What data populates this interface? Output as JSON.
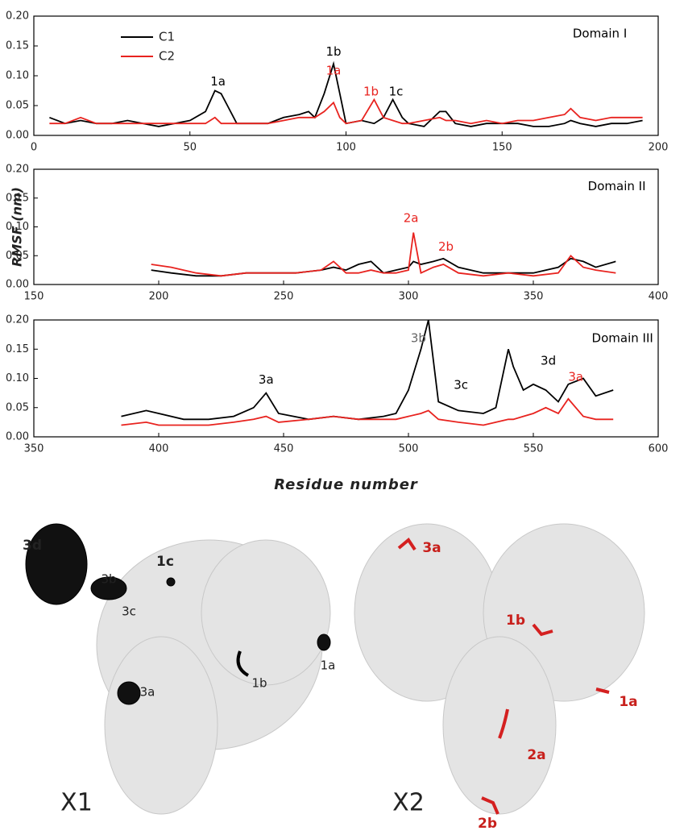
{
  "chart_data": [
    {
      "type": "line",
      "xlim": [
        0,
        200
      ],
      "xticks": [
        0,
        50,
        100,
        150,
        200
      ],
      "ylim": [
        0,
        0.2
      ],
      "yticks": [
        {
          "value": 0,
          "label": "0.00"
        },
        {
          "value": 0.05,
          "label": "0.05"
        },
        {
          "value": 0.1,
          "label": "0.10"
        },
        {
          "value": 0.15,
          "label": "0.15"
        },
        {
          "value": 0.2,
          "label": "0.20"
        }
      ],
      "legend": "upper left",
      "x": [
        5,
        10,
        15,
        20,
        25,
        30,
        35,
        40,
        45,
        50,
        55,
        58,
        60,
        62,
        65,
        70,
        75,
        80,
        85,
        88,
        90,
        93,
        96,
        98,
        100,
        105,
        109,
        112,
        115,
        118,
        120,
        125,
        130,
        132,
        135,
        140,
        145,
        150,
        155,
        160,
        165,
        170,
        172,
        175,
        180,
        185,
        190,
        195
      ],
      "series": [
        {
          "name": "C1",
          "color": "#000000",
          "values": [
            0.03,
            0.02,
            0.025,
            0.02,
            0.02,
            0.025,
            0.02,
            0.015,
            0.02,
            0.025,
            0.04,
            0.075,
            0.07,
            0.05,
            0.02,
            0.02,
            0.02,
            0.03,
            0.035,
            0.04,
            0.03,
            0.07,
            0.12,
            0.07,
            0.02,
            0.025,
            0.02,
            0.03,
            0.06,
            0.03,
            0.02,
            0.015,
            0.04,
            0.04,
            0.02,
            0.015,
            0.02,
            0.02,
            0.02,
            0.015,
            0.015,
            0.02,
            0.025,
            0.02,
            0.015,
            0.02,
            0.02,
            0.025
          ]
        },
        {
          "name": "C2",
          "color": "#e8231f",
          "values": [
            0.02,
            0.02,
            0.03,
            0.02,
            0.02,
            0.02,
            0.02,
            0.02,
            0.02,
            0.02,
            0.02,
            0.03,
            0.02,
            0.02,
            0.02,
            0.02,
            0.02,
            0.025,
            0.03,
            0.03,
            0.03,
            0.04,
            0.055,
            0.03,
            0.02,
            0.025,
            0.06,
            0.03,
            0.025,
            0.02,
            0.02,
            0.025,
            0.03,
            0.025,
            0.025,
            0.02,
            0.025,
            0.02,
            0.025,
            0.025,
            0.03,
            0.035,
            0.045,
            0.03,
            0.025,
            0.03,
            0.03,
            0.03
          ]
        }
      ],
      "annotations": [
        {
          "text": "Domain I",
          "color": "#000000"
        },
        {
          "text": "1a",
          "color": "#000000"
        },
        {
          "text": "1b",
          "color": "#000000"
        },
        {
          "text": "1a",
          "color": "#e8231f"
        },
        {
          "text": "1b",
          "color": "#e8231f"
        },
        {
          "text": "1c",
          "color": "#000000"
        }
      ]
    },
    {
      "type": "line",
      "xlim": [
        150,
        400
      ],
      "xticks": [
        150,
        200,
        250,
        300,
        350,
        400
      ],
      "ylim": [
        0,
        0.2
      ],
      "yticks": [
        {
          "value": 0,
          "label": "0.00"
        },
        {
          "value": 0.05,
          "label": "0.05"
        },
        {
          "value": 0.1,
          "label": "0.10"
        },
        {
          "value": 0.15,
          "label": "0.15"
        },
        {
          "value": 0.2,
          "label": "0.20"
        }
      ],
      "ylabel": "RMSF (nm)",
      "x": [
        197,
        205,
        215,
        225,
        235,
        245,
        255,
        265,
        270,
        275,
        280,
        285,
        290,
        295,
        300,
        302,
        305,
        310,
        314,
        320,
        330,
        340,
        350,
        360,
        365,
        370,
        375,
        383
      ],
      "series": [
        {
          "color": "#000000",
          "values": [
            0.025,
            0.02,
            0.015,
            0.015,
            0.02,
            0.02,
            0.02,
            0.025,
            0.03,
            0.025,
            0.035,
            0.04,
            0.02,
            0.025,
            0.03,
            0.04,
            0.035,
            0.04,
            0.045,
            0.03,
            0.02,
            0.02,
            0.02,
            0.03,
            0.045,
            0.04,
            0.03,
            0.04
          ]
        },
        {
          "color": "#e8231f",
          "values": [
            0.035,
            0.03,
            0.02,
            0.015,
            0.02,
            0.02,
            0.02,
            0.025,
            0.04,
            0.02,
            0.02,
            0.025,
            0.02,
            0.02,
            0.025,
            0.09,
            0.02,
            0.03,
            0.035,
            0.02,
            0.015,
            0.02,
            0.015,
            0.02,
            0.05,
            0.03,
            0.025,
            0.02
          ]
        }
      ],
      "annotations": [
        {
          "text": "Domain II",
          "color": "#000000"
        },
        {
          "text": "2a",
          "color": "#e8231f"
        },
        {
          "text": "2b",
          "color": "#e8231f"
        }
      ]
    },
    {
      "type": "line",
      "xlim": [
        350,
        600
      ],
      "xticks": [
        350,
        400,
        450,
        500,
        550,
        600
      ],
      "ylim": [
        0,
        0.2
      ],
      "yticks": [
        {
          "value": 0,
          "label": "0.00"
        },
        {
          "value": 0.05,
          "label": "0.05"
        },
        {
          "value": 0.1,
          "label": "0.10"
        },
        {
          "value": 0.15,
          "label": "0.15"
        },
        {
          "value": 0.2,
          "label": "0.20"
        }
      ],
      "xlabel": "Residue number",
      "x": [
        385,
        395,
        400,
        410,
        420,
        430,
        438,
        443,
        448,
        460,
        470,
        480,
        490,
        495,
        500,
        505,
        508,
        512,
        520,
        530,
        535,
        540,
        542,
        546,
        550,
        555,
        560,
        564,
        570,
        575,
        582
      ],
      "series": [
        {
          "color": "#000000",
          "values": [
            0.035,
            0.045,
            0.04,
            0.03,
            0.03,
            0.035,
            0.05,
            0.075,
            0.04,
            0.03,
            0.035,
            0.03,
            0.035,
            0.04,
            0.08,
            0.15,
            0.2,
            0.06,
            0.045,
            0.04,
            0.05,
            0.15,
            0.12,
            0.08,
            0.09,
            0.08,
            0.06,
            0.09,
            0.1,
            0.07,
            0.08
          ]
        },
        {
          "color": "#e8231f",
          "values": [
            0.02,
            0.025,
            0.02,
            0.02,
            0.02,
            0.025,
            0.03,
            0.035,
            0.025,
            0.03,
            0.035,
            0.03,
            0.03,
            0.03,
            0.035,
            0.04,
            0.045,
            0.03,
            0.025,
            0.02,
            0.025,
            0.03,
            0.03,
            0.035,
            0.04,
            0.05,
            0.04,
            0.065,
            0.035,
            0.03,
            0.03
          ]
        }
      ],
      "annotations": [
        {
          "text": "Domain III",
          "color": "#000000"
        },
        {
          "text": "3a",
          "color": "#000000"
        },
        {
          "text": "3b",
          "color": "#666666"
        },
        {
          "text": "3c",
          "color": "#000000"
        },
        {
          "text": "3d",
          "color": "#000000"
        },
        {
          "text": "3a",
          "color": "#e8231f"
        }
      ]
    }
  ],
  "structures": [
    {
      "title": "X1",
      "labels": [
        "3d",
        "3b",
        "3c",
        "3a",
        "1c",
        "1b",
        "1a"
      ]
    },
    {
      "title": "X2",
      "labels": [
        "3a",
        "1b",
        "1a",
        "2a",
        "2b"
      ]
    }
  ]
}
